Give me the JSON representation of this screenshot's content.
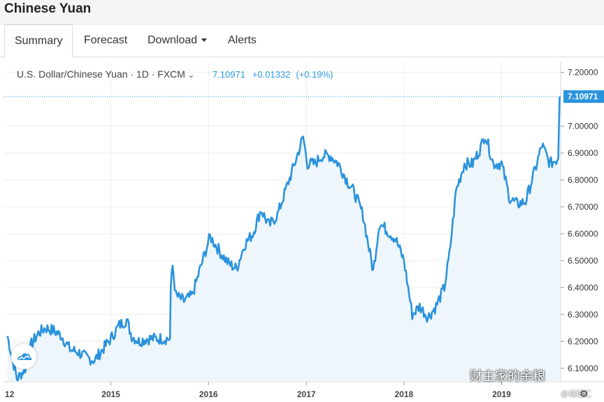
{
  "page": {
    "title": "Chinese Yuan"
  },
  "tabs": [
    {
      "label": "Summary",
      "active": true
    },
    {
      "label": "Forecast",
      "active": false
    },
    {
      "label": "Download",
      "active": false,
      "dropdown": true
    },
    {
      "label": "Alerts",
      "active": false
    }
  ],
  "legend": {
    "symbol": "U.S. Dollar/Chinese Yuan · 1D · FXCM",
    "chevron": "⌄",
    "last": "7.10971",
    "change": "+0.01332",
    "change_pct": "(+0.19%)"
  },
  "watermark": {
    "text": "财主家的余粮",
    "small": "@格隆汇"
  },
  "colors": {
    "line": "#2b93dc",
    "fill": "#eef6fb",
    "last_badge": "#2b93dc"
  },
  "chart_data": {
    "type": "area",
    "title": "",
    "series": [
      {
        "name": "",
        "color": "#2b93dc"
      }
    ],
    "ylim": [
      6.05,
      7.24
    ],
    "y_axis_side": "right",
    "y_ticks": [
      "7.20000",
      "7.00000",
      "6.90000",
      "6.80000",
      "6.70000",
      "6.60000",
      "6.50000",
      "6.40000",
      "6.30000",
      "6.20000",
      "6.10000"
    ],
    "x_ticks": [
      "2015",
      "2016",
      "2017",
      "2018",
      "2019"
    ],
    "x_partial_label": "12",
    "last_value_label": "7.10971",
    "last_value": 7.10971,
    "grid": true,
    "points": [
      [
        "2013-12-10",
        6.22
      ],
      [
        "2014-01-15",
        6.06
      ],
      [
        "2014-02-15",
        6.1
      ],
      [
        "2014-03-10",
        6.19
      ],
      [
        "2014-04-05",
        6.23
      ],
      [
        "2014-05-01",
        6.25
      ],
      [
        "2014-06-01",
        6.24
      ],
      [
        "2014-07-01",
        6.22
      ],
      [
        "2014-08-01",
        6.17
      ],
      [
        "2014-09-01",
        6.16
      ],
      [
        "2014-10-01",
        6.14
      ],
      [
        "2014-11-01",
        6.13
      ],
      [
        "2014-12-01",
        6.17
      ],
      [
        "2015-01-01",
        6.21
      ],
      [
        "2015-02-01",
        6.26
      ],
      [
        "2015-03-01",
        6.28
      ],
      [
        "2015-03-20",
        6.22
      ],
      [
        "2015-04-15",
        6.2
      ],
      [
        "2015-05-15",
        6.21
      ],
      [
        "2015-06-15",
        6.21
      ],
      [
        "2015-08-10",
        6.21
      ],
      [
        "2015-08-13",
        6.4
      ],
      [
        "2015-08-20",
        6.48
      ],
      [
        "2015-09-01",
        6.37
      ],
      [
        "2015-10-01",
        6.35
      ],
      [
        "2015-11-01",
        6.37
      ],
      [
        "2015-12-01",
        6.47
      ],
      [
        "2016-01-07",
        6.59
      ],
      [
        "2016-01-20",
        6.57
      ],
      [
        "2016-02-15",
        6.53
      ],
      [
        "2016-03-15",
        6.49
      ],
      [
        "2016-04-15",
        6.47
      ],
      [
        "2016-05-15",
        6.56
      ],
      [
        "2016-06-15",
        6.6
      ],
      [
        "2016-07-15",
        6.69
      ],
      [
        "2016-08-15",
        6.63
      ],
      [
        "2016-09-15",
        6.67
      ],
      [
        "2016-10-15",
        6.76
      ],
      [
        "2016-11-15",
        6.85
      ],
      [
        "2016-12-20",
        6.96
      ],
      [
        "2017-01-05",
        6.86
      ],
      [
        "2017-02-01",
        6.86
      ],
      [
        "2017-03-01",
        6.89
      ],
      [
        "2017-04-01",
        6.89
      ],
      [
        "2017-05-01",
        6.86
      ],
      [
        "2017-06-01",
        6.8
      ],
      [
        "2017-07-01",
        6.75
      ],
      [
        "2017-08-01",
        6.67
      ],
      [
        "2017-09-08",
        6.46
      ],
      [
        "2017-10-01",
        6.64
      ],
      [
        "2017-11-01",
        6.61
      ],
      [
        "2017-12-01",
        6.58
      ],
      [
        "2018-01-01",
        6.5
      ],
      [
        "2018-02-01",
        6.3
      ],
      [
        "2018-03-01",
        6.33
      ],
      [
        "2018-04-01",
        6.29
      ],
      [
        "2018-05-01",
        6.33
      ],
      [
        "2018-06-01",
        6.4
      ],
      [
        "2018-06-20",
        6.52
      ],
      [
        "2018-07-15",
        6.76
      ],
      [
        "2018-08-15",
        6.86
      ],
      [
        "2018-09-15",
        6.86
      ],
      [
        "2018-10-15",
        6.92
      ],
      [
        "2018-11-01",
        6.97
      ],
      [
        "2018-12-01",
        6.86
      ],
      [
        "2019-01-01",
        6.86
      ],
      [
        "2019-02-01",
        6.73
      ],
      [
        "2019-03-01",
        6.71
      ],
      [
        "2019-04-01",
        6.72
      ],
      [
        "2019-05-10",
        6.85
      ],
      [
        "2019-06-01",
        6.93
      ],
      [
        "2019-07-01",
        6.86
      ],
      [
        "2019-08-01",
        6.88
      ],
      [
        "2019-08-06",
        7.10971
      ]
    ]
  }
}
